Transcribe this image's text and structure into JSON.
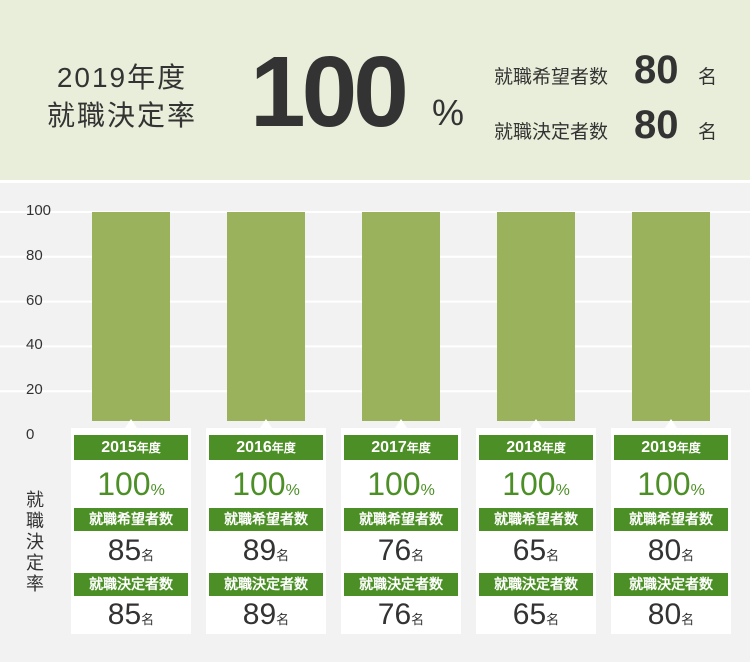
{
  "header": {
    "year": "2019年度",
    "label": "就職決定率",
    "rate": "100",
    "rate_unit": "%",
    "applicants_label": "就職希望者数",
    "applicants": "80",
    "decided_label": "就職決定者数",
    "decided": "80",
    "unit": "名"
  },
  "colors": {
    "header_bg": "#e8eed9",
    "bar": "#9bb25c",
    "label_bg": "#4c8f26",
    "rate_text": "#4c8f26",
    "panel_bg": "#f2f2f2"
  },
  "chart_data": {
    "type": "bar",
    "categories": [
      "2015年度",
      "2016年度",
      "2017年度",
      "2018年度",
      "2019年度"
    ],
    "values": [
      100,
      100,
      100,
      100,
      100
    ],
    "ylabel": "就職決定率",
    "ylim": [
      0,
      100
    ],
    "yticks": [
      "0",
      "20",
      "40",
      "60",
      "80",
      "100"
    ],
    "grid": true
  },
  "years": [
    {
      "year": "2015",
      "suffix": "年度",
      "rate": "100",
      "pct": "%",
      "hope_label": "就職希望者数",
      "hope": "85",
      "decided_label": "就職決定者数",
      "decided": "85",
      "unit": "名"
    },
    {
      "year": "2016",
      "suffix": "年度",
      "rate": "100",
      "pct": "%",
      "hope_label": "就職希望者数",
      "hope": "89",
      "decided_label": "就職決定者数",
      "decided": "89",
      "unit": "名"
    },
    {
      "year": "2017",
      "suffix": "年度",
      "rate": "100",
      "pct": "%",
      "hope_label": "就職希望者数",
      "hope": "76",
      "decided_label": "就職決定者数",
      "decided": "76",
      "unit": "名"
    },
    {
      "year": "2018",
      "suffix": "年度",
      "rate": "100",
      "pct": "%",
      "hope_label": "就職希望者数",
      "hope": "65",
      "decided_label": "就職決定者数",
      "decided": "65",
      "unit": "名"
    },
    {
      "year": "2019",
      "suffix": "年度",
      "rate": "100",
      "pct": "%",
      "hope_label": "就職希望者数",
      "hope": "80",
      "decided_label": "就職決定者数",
      "decided": "80",
      "unit": "名"
    }
  ]
}
